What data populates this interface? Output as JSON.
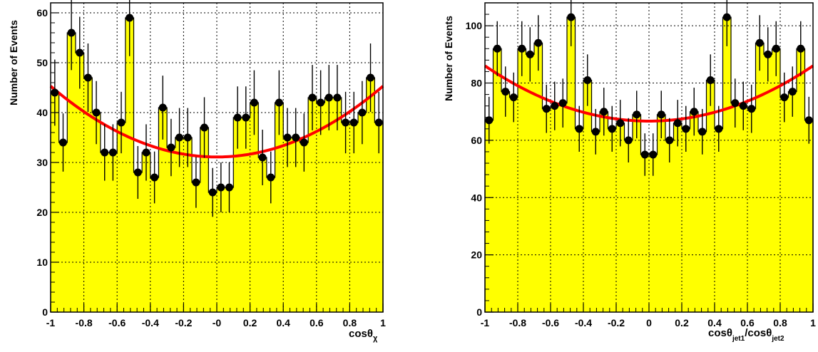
{
  "chart_data": [
    {
      "type": "bar",
      "xlabel_main": "cosθ",
      "xlabel_sub": "χ",
      "ylabel": "Number of Events",
      "xlim": [
        -1,
        1
      ],
      "ylim": [
        0,
        62
      ],
      "x_ticks": [
        "-1",
        "-0.8",
        "-0.6",
        "-0.4",
        "-0.2",
        "-0",
        "0.2",
        "0.4",
        "0.6",
        "0.8",
        "1"
      ],
      "y_ticks": [
        "0",
        "10",
        "20",
        "30",
        "40",
        "50",
        "60"
      ],
      "grid": true,
      "bins": 40,
      "values": [
        44,
        34,
        56,
        52,
        47,
        40,
        32,
        32,
        38,
        59,
        28,
        32,
        27,
        41,
        33,
        35,
        35,
        26,
        37,
        24,
        25,
        25,
        39,
        39,
        42,
        31,
        27,
        42,
        35,
        35,
        34,
        43,
        42,
        43,
        43,
        38,
        38,
        40,
        47,
        38
      ],
      "fit": {
        "a": 31.1,
        "b": 14.2
      },
      "colors": {
        "fill": "#ffff00",
        "outline": "#000000",
        "fit": "#ff0000",
        "marker": "#000000"
      }
    },
    {
      "type": "bar",
      "xlabel_main": "cosθ",
      "xlabel_sub": "jet1",
      "xlabel_mid": "/cosθ",
      "xlabel_sub2": "jet2",
      "ylabel": "Number of Events",
      "xlim": [
        -1,
        1
      ],
      "ylim": [
        0,
        108
      ],
      "x_ticks": [
        "-1",
        "-0.8",
        "-0.6",
        "-0.4",
        "-0.2",
        "0",
        "0.2",
        "0.4",
        "0.6",
        "0.8",
        "1"
      ],
      "y_ticks": [
        "0",
        "20",
        "40",
        "60",
        "80",
        "100"
      ],
      "grid": true,
      "bins": 40,
      "values": [
        67,
        92,
        77,
        75,
        92,
        90,
        94,
        71,
        72,
        73,
        103,
        64,
        81,
        63,
        70,
        64,
        66,
        60,
        69,
        55,
        55,
        69,
        60,
        66,
        64,
        70,
        63,
        81,
        64,
        103,
        73,
        72,
        71,
        94,
        90,
        92,
        75,
        77,
        92,
        67
      ],
      "fit": {
        "a": 66.7,
        "b": 19.3
      },
      "colors": {
        "fill": "#ffff00",
        "outline": "#000000",
        "fit": "#ff0000",
        "marker": "#000000"
      }
    }
  ]
}
